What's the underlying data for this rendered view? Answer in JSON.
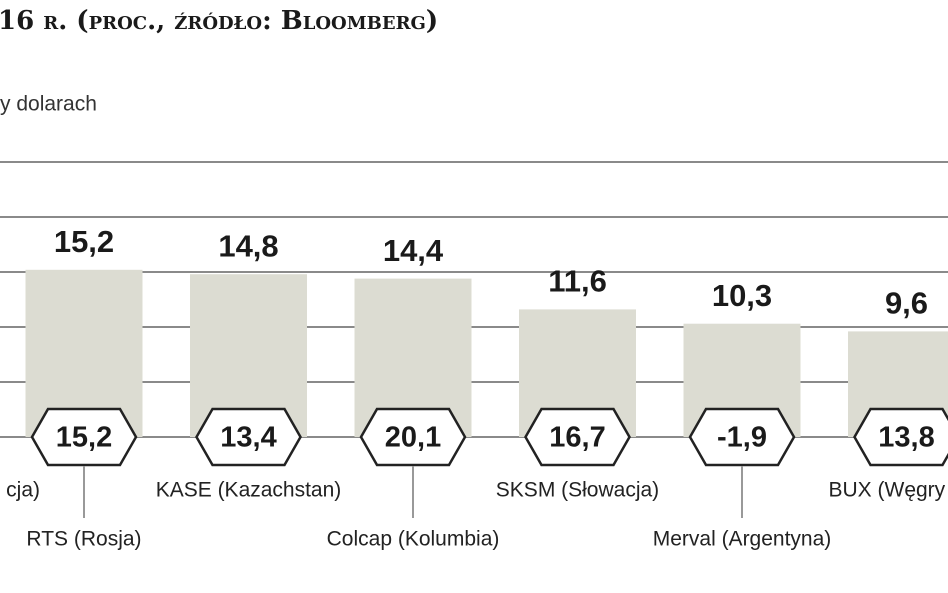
{
  "chart_data": {
    "type": "bar",
    "title": "16 r. (proc., źródło: Bloomberg)",
    "subtitle": "y dolarach",
    "categories": [
      "cja)",
      "RTS (Rosja)",
      "KASE (Kazachstan)",
      "Colcap (Kolumbia)",
      "SKSM (Słowacja)",
      "Merval (Argentyna)",
      "BUX (Węgry"
    ],
    "series": [
      {
        "color": "#dcdcd2",
        "values": [
          null,
          15.2,
          14.8,
          14.4,
          11.6,
          10.3,
          9.6
        ],
        "value_labels": [
          null,
          "15,2",
          "14,8",
          "14,4",
          "11,6",
          "10,3",
          "9,6"
        ]
      },
      {
        "values": [
          null,
          15.2,
          13.4,
          20.1,
          16.7,
          -1.9,
          13.8
        ],
        "value_labels": [
          null,
          "15,2",
          "13,4",
          "20,1",
          "16,7",
          "-1,9",
          "13,8"
        ]
      }
    ],
    "ylim": [
      0,
      25
    ],
    "yticks": [
      0,
      5,
      10,
      15,
      20,
      25
    ],
    "grid": true
  }
}
